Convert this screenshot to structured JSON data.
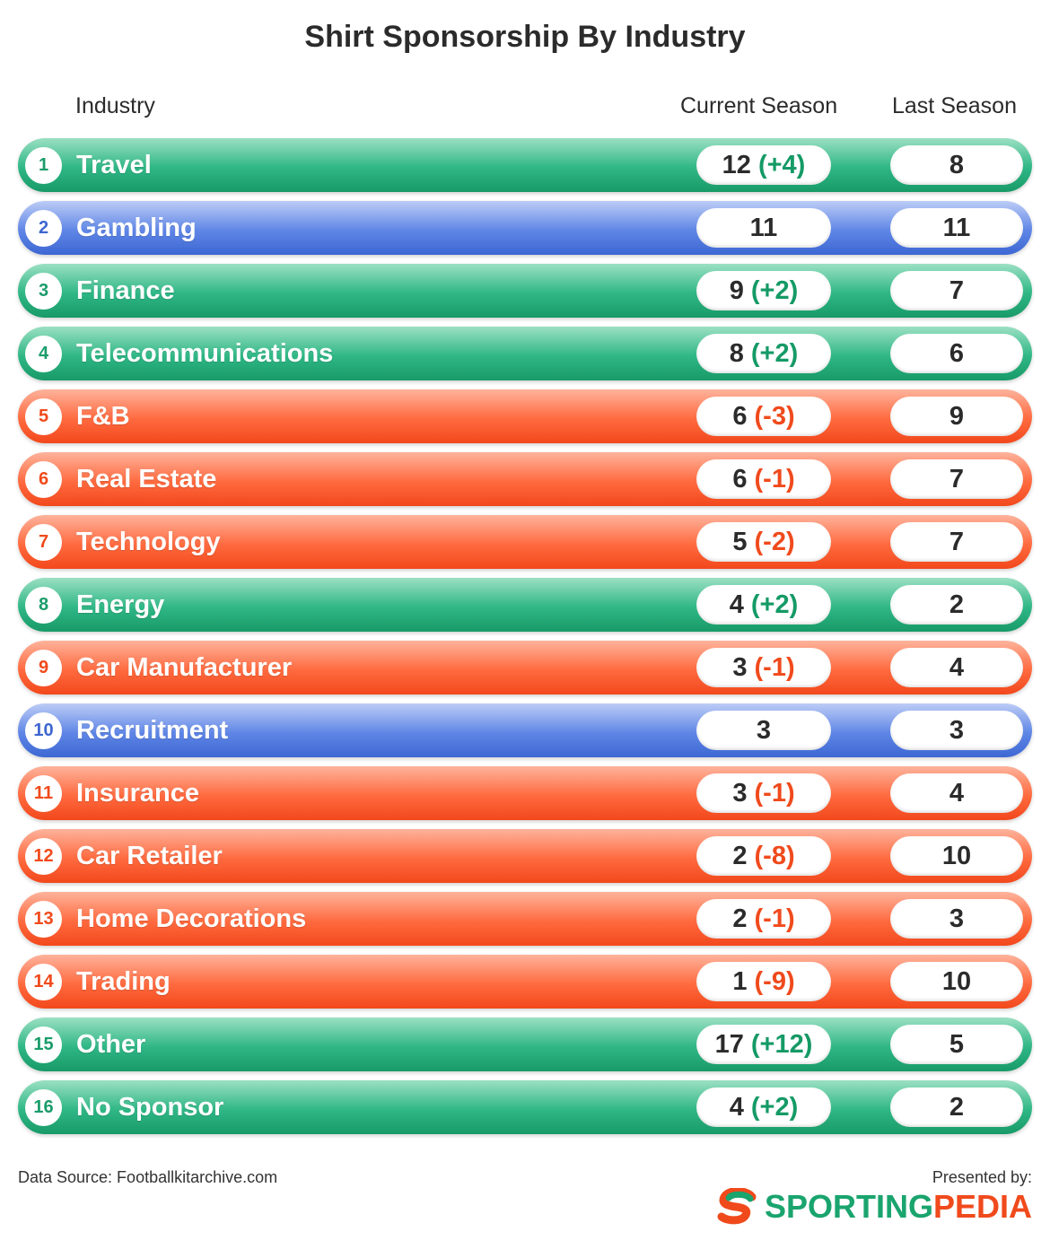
{
  "title": "Shirt Sponsorship By Industry",
  "headers": {
    "industry": "Industry",
    "current": "Current Season",
    "last": "Last Season"
  },
  "colors": {
    "increase": "#1aa46e",
    "neutral": "#4a73dc",
    "decrease": "#f04a1c"
  },
  "chart_data": {
    "type": "table",
    "title": "Shirt Sponsorship By Industry",
    "columns": [
      "Industry",
      "Current Season",
      "Last Season"
    ],
    "rows": [
      {
        "rank": "1",
        "industry": "Travel",
        "current": "12",
        "change": "(+4)",
        "last": "8",
        "trend": "green"
      },
      {
        "rank": "2",
        "industry": "Gambling",
        "current": "11",
        "change": "",
        "last": "11",
        "trend": "blue"
      },
      {
        "rank": "3",
        "industry": "Finance",
        "current": "9",
        "change": "(+2)",
        "last": "7",
        "trend": "green"
      },
      {
        "rank": "4",
        "industry": "Telecommunications",
        "current": "8",
        "change": "(+2)",
        "last": "6",
        "trend": "green"
      },
      {
        "rank": "5",
        "industry": "F&B",
        "current": "6",
        "change": "(-3)",
        "last": "9",
        "trend": "red"
      },
      {
        "rank": "6",
        "industry": "Real Estate",
        "current": "6",
        "change": "(-1)",
        "last": "7",
        "trend": "red"
      },
      {
        "rank": "7",
        "industry": "Technology",
        "current": "5",
        "change": "(-2)",
        "last": "7",
        "trend": "red"
      },
      {
        "rank": "8",
        "industry": "Energy",
        "current": "4",
        "change": "(+2)",
        "last": "2",
        "trend": "green"
      },
      {
        "rank": "9",
        "industry": "Car Manufacturer",
        "current": "3",
        "change": "(-1)",
        "last": "4",
        "trend": "red"
      },
      {
        "rank": "10",
        "industry": "Recruitment",
        "current": "3",
        "change": "",
        "last": "3",
        "trend": "blue"
      },
      {
        "rank": "11",
        "industry": "Insurance",
        "current": "3",
        "change": "(-1)",
        "last": "4",
        "trend": "red"
      },
      {
        "rank": "12",
        "industry": "Car Retailer",
        "current": "2",
        "change": "(-8)",
        "last": "10",
        "trend": "red"
      },
      {
        "rank": "13",
        "industry": "Home Decorations",
        "current": "2",
        "change": "(-1)",
        "last": "3",
        "trend": "red"
      },
      {
        "rank": "14",
        "industry": "Trading",
        "current": "1",
        "change": "(-9)",
        "last": "10",
        "trend": "red"
      },
      {
        "rank": "15",
        "industry": "Other",
        "current": "17",
        "change": "(+12)",
        "last": "5",
        "trend": "green"
      },
      {
        "rank": "16",
        "industry": "No Sponsor",
        "current": "4",
        "change": "(+2)",
        "last": "2",
        "trend": "green"
      }
    ]
  },
  "footer": {
    "source": "Data Source: Footballkitarchive.com",
    "presented": "Presented by:",
    "logo_part1": "SPORTING",
    "logo_part2": "PEDIA",
    "logo_icon": "sportingpedia-s-logo-icon"
  }
}
